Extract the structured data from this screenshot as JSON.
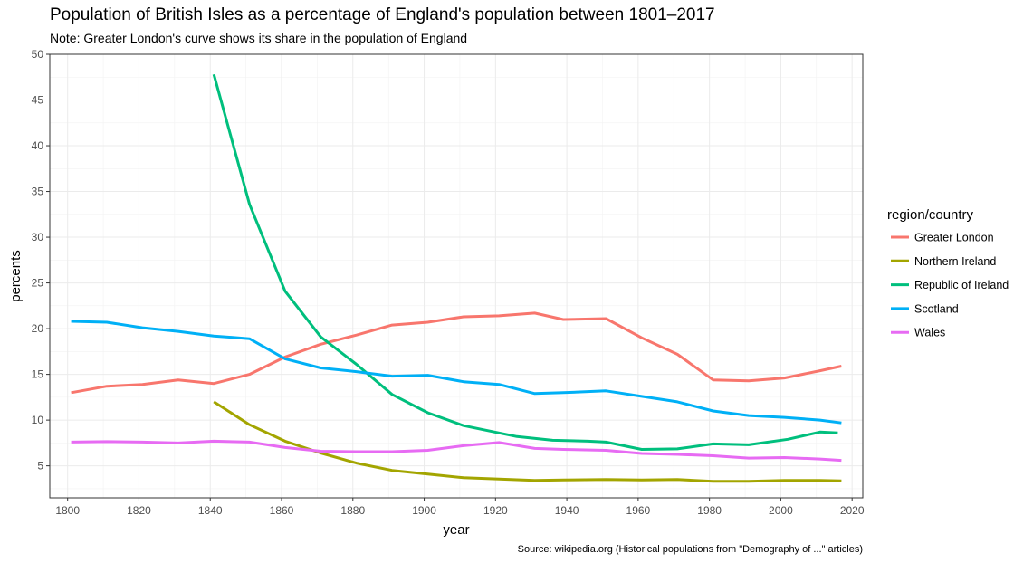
{
  "chart_data": {
    "type": "line",
    "title": "Population of British Isles as a percentage of England's population between 1801–2017",
    "subtitle": "Note: Greater London's curve shows its share in the population of England",
    "xlabel": "year",
    "ylabel": "percents",
    "caption": "Source: wikipedia.org (Historical populations from \"Demography of ...\" articles)",
    "legend_title": "region/country",
    "legend_position": "right",
    "grid": true,
    "xlim": [
      1795,
      2023
    ],
    "ylim": [
      1.5,
      50
    ],
    "x_ticks": [
      1800,
      1820,
      1840,
      1860,
      1880,
      1900,
      1920,
      1940,
      1960,
      1980,
      2000,
      2020
    ],
    "x_tick_labels": [
      "1800",
      "1820",
      "1840",
      "1860",
      "1880",
      "1900",
      "1920",
      "1940",
      "1960",
      "1980",
      "2000",
      "2020"
    ],
    "y_ticks": [
      5,
      10,
      15,
      20,
      25,
      30,
      35,
      40,
      45,
      50
    ],
    "y_tick_labels": [
      "5",
      "10",
      "15",
      "20",
      "25",
      "30",
      "35",
      "40",
      "45",
      "50"
    ],
    "series": [
      {
        "name": "Greater London",
        "color": "#F8766D",
        "points": [
          [
            1801,
            13.0
          ],
          [
            1811,
            13.7
          ],
          [
            1821,
            13.9
          ],
          [
            1831,
            14.4
          ],
          [
            1841,
            14.0
          ],
          [
            1851,
            15.0
          ],
          [
            1861,
            16.9
          ],
          [
            1871,
            18.3
          ],
          [
            1881,
            19.3
          ],
          [
            1891,
            20.4
          ],
          [
            1901,
            20.7
          ],
          [
            1911,
            21.3
          ],
          [
            1921,
            21.4
          ],
          [
            1931,
            21.7
          ],
          [
            1939,
            21.0
          ],
          [
            1951,
            21.1
          ],
          [
            1961,
            19.0
          ],
          [
            1971,
            17.2
          ],
          [
            1981,
            14.4
          ],
          [
            1991,
            14.3
          ],
          [
            2001,
            14.6
          ],
          [
            2011,
            15.4
          ],
          [
            2017,
            15.9
          ]
        ]
      },
      {
        "name": "Northern Ireland",
        "color": "#A3A500",
        "points": [
          [
            1841,
            12.0
          ],
          [
            1851,
            9.5
          ],
          [
            1861,
            7.7
          ],
          [
            1871,
            6.4
          ],
          [
            1881,
            5.3
          ],
          [
            1891,
            4.5
          ],
          [
            1901,
            4.1
          ],
          [
            1911,
            3.7
          ],
          [
            1921,
            3.55
          ],
          [
            1931,
            3.4
          ],
          [
            1939,
            3.45
          ],
          [
            1951,
            3.5
          ],
          [
            1961,
            3.45
          ],
          [
            1971,
            3.5
          ],
          [
            1981,
            3.3
          ],
          [
            1991,
            3.3
          ],
          [
            2001,
            3.4
          ],
          [
            2011,
            3.4
          ],
          [
            2017,
            3.35
          ]
        ]
      },
      {
        "name": "Republic of Ireland",
        "color": "#00BF7D",
        "points": [
          [
            1841,
            47.8
          ],
          [
            1851,
            33.6
          ],
          [
            1861,
            24.1
          ],
          [
            1871,
            19.1
          ],
          [
            1881,
            16.1
          ],
          [
            1891,
            12.8
          ],
          [
            1901,
            10.8
          ],
          [
            1911,
            9.4
          ],
          [
            1921,
            8.6
          ],
          [
            1926,
            8.2
          ],
          [
            1936,
            7.8
          ],
          [
            1946,
            7.7
          ],
          [
            1951,
            7.6
          ],
          [
            1961,
            6.8
          ],
          [
            1971,
            6.85
          ],
          [
            1981,
            7.4
          ],
          [
            1991,
            7.3
          ],
          [
            2002,
            7.9
          ],
          [
            2011,
            8.7
          ],
          [
            2016,
            8.6
          ]
        ]
      },
      {
        "name": "Scotland",
        "color": "#00B0F6",
        "points": [
          [
            1801,
            20.8
          ],
          [
            1811,
            20.7
          ],
          [
            1821,
            20.1
          ],
          [
            1831,
            19.7
          ],
          [
            1841,
            19.2
          ],
          [
            1851,
            18.9
          ],
          [
            1861,
            16.7
          ],
          [
            1871,
            15.7
          ],
          [
            1881,
            15.3
          ],
          [
            1891,
            14.8
          ],
          [
            1901,
            14.9
          ],
          [
            1911,
            14.2
          ],
          [
            1921,
            13.9
          ],
          [
            1931,
            12.9
          ],
          [
            1939,
            13.0
          ],
          [
            1951,
            13.2
          ],
          [
            1961,
            12.6
          ],
          [
            1971,
            12.0
          ],
          [
            1981,
            11.0
          ],
          [
            1991,
            10.5
          ],
          [
            2001,
            10.3
          ],
          [
            2011,
            10.0
          ],
          [
            2017,
            9.7
          ]
        ]
      },
      {
        "name": "Wales",
        "color": "#E76BF3",
        "points": [
          [
            1801,
            7.6
          ],
          [
            1811,
            7.65
          ],
          [
            1821,
            7.6
          ],
          [
            1831,
            7.5
          ],
          [
            1841,
            7.7
          ],
          [
            1851,
            7.6
          ],
          [
            1861,
            7.0
          ],
          [
            1871,
            6.6
          ],
          [
            1881,
            6.55
          ],
          [
            1891,
            6.55
          ],
          [
            1901,
            6.7
          ],
          [
            1911,
            7.2
          ],
          [
            1921,
            7.55
          ],
          [
            1931,
            6.9
          ],
          [
            1939,
            6.8
          ],
          [
            1951,
            6.7
          ],
          [
            1961,
            6.35
          ],
          [
            1971,
            6.25
          ],
          [
            1981,
            6.1
          ],
          [
            1991,
            5.85
          ],
          [
            2001,
            5.9
          ],
          [
            2011,
            5.75
          ],
          [
            2017,
            5.6
          ]
        ]
      }
    ]
  }
}
